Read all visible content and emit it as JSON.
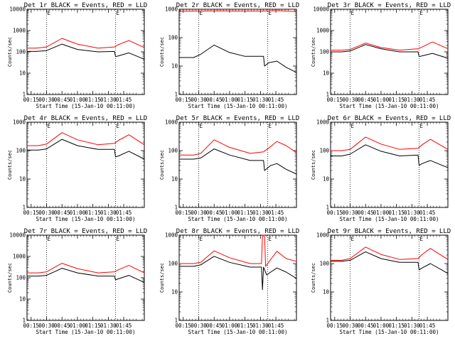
{
  "chart_data": [
    {
      "type": "line",
      "title": "Det 1r BLACK = Events, RED = LLD",
      "xlabel": "Start Time (15-Jan-10 00:11:00)",
      "ylabel": "Counts/sec",
      "y_scale": "log",
      "ylim": [
        1,
        10000
      ],
      "xticks": [
        "00:15",
        "00:30",
        "00:45",
        "01:00",
        "01:15",
        "01:30",
        "01:45"
      ],
      "yticks": [
        "1",
        "10",
        "100",
        "1000",
        "10000"
      ],
      "vlines_min": [
        30,
        97
      ],
      "marker": "E",
      "series": [
        {
          "color": "#000000",
          "values": [
            [
              11,
              105
            ],
            [
              20,
              105
            ],
            [
              30,
              115
            ],
            [
              45,
              230
            ],
            [
              60,
              130
            ],
            [
              80,
              100
            ],
            [
              96,
              105
            ],
            [
              97,
              60
            ],
            [
              100,
              65
            ],
            [
              110,
              90
            ],
            [
              125,
              45
            ]
          ]
        },
        {
          "color": "#ff0000",
          "values": [
            [
              11,
              150
            ],
            [
              20,
              150
            ],
            [
              30,
              170
            ],
            [
              45,
              430
            ],
            [
              60,
              230
            ],
            [
              80,
              150
            ],
            [
              96,
              170
            ],
            [
              100,
              220
            ],
            [
              110,
              340
            ],
            [
              125,
              160
            ]
          ]
        }
      ]
    },
    {
      "type": "line",
      "title": "Det 2r BLACK = Events, RED = LLD",
      "xlabel": "Start Time (15-Jan-10 00:11:00)",
      "ylabel": "Counts/sec",
      "y_scale": "log",
      "ylim": [
        1,
        1000
      ],
      "xticks": [
        "00:15",
        "00:30",
        "00:45",
        "01:00",
        "01:15",
        "01:30",
        "01:45"
      ],
      "yticks": [
        "1",
        "10",
        "100",
        "1000"
      ],
      "vlines_min": [
        30,
        97
      ],
      "marker": "E",
      "series": [
        {
          "color": "#000000",
          "values": [
            [
              11,
              20
            ],
            [
              25,
              20
            ],
            [
              32,
              26
            ],
            [
              45,
              55
            ],
            [
              60,
              30
            ],
            [
              75,
              22
            ],
            [
              93,
              22
            ],
            [
              94,
              10
            ],
            [
              98,
              13
            ],
            [
              106,
              15
            ],
            [
              115,
              9
            ],
            [
              125,
              6
            ]
          ]
        },
        {
          "color": "#ff0000",
          "values": [
            [
              11,
              850
            ],
            [
              30,
              860
            ],
            [
              50,
              880
            ],
            [
              70,
              860
            ],
            [
              90,
              860
            ],
            [
              106,
              890
            ],
            [
              125,
              830
            ]
          ]
        }
      ]
    },
    {
      "type": "line",
      "title": "Det 3r BLACK = Events, RED = LLD",
      "xlabel": "Start Time (15-Jan-10 00:11:00)",
      "ylabel": "Counts/sec",
      "y_scale": "log",
      "ylim": [
        1,
        10000
      ],
      "xticks": [
        "00:15",
        "00:30",
        "00:45",
        "01:00",
        "01:15",
        "01:30",
        "01:45"
      ],
      "yticks": [
        "1",
        "10",
        "100",
        "1000",
        "10000"
      ],
      "vlines_min": [
        30,
        97
      ],
      "marker": "E",
      "series": [
        {
          "color": "#000000",
          "values": [
            [
              11,
              100
            ],
            [
              22,
              100
            ],
            [
              30,
              110
            ],
            [
              45,
              220
            ],
            [
              60,
              140
            ],
            [
              78,
              100
            ],
            [
              96,
              100
            ],
            [
              97,
              60
            ],
            [
              100,
              65
            ],
            [
              110,
              85
            ],
            [
              125,
              50
            ]
          ]
        },
        {
          "color": "#ff0000",
          "values": [
            [
              11,
              120
            ],
            [
              22,
              120
            ],
            [
              30,
              130
            ],
            [
              45,
              260
            ],
            [
              60,
              160
            ],
            [
              78,
              120
            ],
            [
              96,
              140
            ],
            [
              100,
              170
            ],
            [
              110,
              290
            ],
            [
              125,
              140
            ]
          ]
        }
      ]
    },
    {
      "type": "line",
      "title": "Det 4r BLACK = Events, RED = LLD",
      "xlabel": "Start Time (15-Jan-10 00:11:00)",
      "ylabel": "Counts/sec",
      "y_scale": "log",
      "ylim": [
        1,
        1000
      ],
      "xticks": [
        "00:15",
        "00:30",
        "00:45",
        "01:00",
        "01:15",
        "01:30",
        "01:45"
      ],
      "yticks": [
        "1",
        "10",
        "100",
        "1000"
      ],
      "vlines_min": [
        30,
        97
      ],
      "marker": "E",
      "series": [
        {
          "color": "#000000",
          "values": [
            [
              11,
              105
            ],
            [
              22,
              105
            ],
            [
              30,
              115
            ],
            [
              45,
              250
            ],
            [
              60,
              150
            ],
            [
              80,
              110
            ],
            [
              96,
              110
            ],
            [
              97,
              60
            ],
            [
              100,
              65
            ],
            [
              110,
              95
            ],
            [
              125,
              50
            ]
          ]
        },
        {
          "color": "#ff0000",
          "values": [
            [
              11,
              150
            ],
            [
              22,
              150
            ],
            [
              30,
              170
            ],
            [
              45,
              430
            ],
            [
              60,
              240
            ],
            [
              80,
              160
            ],
            [
              96,
              180
            ],
            [
              100,
              230
            ],
            [
              110,
              360
            ],
            [
              125,
              160
            ]
          ]
        }
      ]
    },
    {
      "type": "line",
      "title": "Det 5r BLACK = Events, RED = LLD",
      "xlabel": "Start Time (15-Jan-10 00:11:00)",
      "ylabel": "Counts/sec",
      "y_scale": "log",
      "ylim": [
        1,
        1000
      ],
      "xticks": [
        "00:15",
        "00:30",
        "00:45",
        "01:00",
        "01:15",
        "01:30",
        "01:45"
      ],
      "yticks": [
        "1",
        "10",
        "100",
        "1000"
      ],
      "vlines_min": [
        30,
        97
      ],
      "marker": "E",
      "series": [
        {
          "color": "#000000",
          "values": [
            [
              11,
              50
            ],
            [
              25,
              50
            ],
            [
              32,
              55
            ],
            [
              45,
              115
            ],
            [
              60,
              70
            ],
            [
              80,
              45
            ],
            [
              93,
              45
            ],
            [
              94,
              20
            ],
            [
              100,
              30
            ],
            [
              106,
              35
            ],
            [
              115,
              22
            ],
            [
              125,
              15
            ]
          ]
        },
        {
          "color": "#ff0000",
          "values": [
            [
              11,
              70
            ],
            [
              25,
              70
            ],
            [
              32,
              80
            ],
            [
              45,
              240
            ],
            [
              60,
              130
            ],
            [
              80,
              80
            ],
            [
              93,
              90
            ],
            [
              100,
              140
            ],
            [
              106,
              210
            ],
            [
              115,
              150
            ],
            [
              125,
              85
            ]
          ]
        }
      ]
    },
    {
      "type": "line",
      "title": "Det 6r BLACK = Events, RED = LLD",
      "xlabel": "Start Time (15-Jan-10 00:11:00)",
      "ylabel": "Counts/sec",
      "y_scale": "log",
      "ylim": [
        1,
        1000
      ],
      "xticks": [
        "00:15",
        "00:30",
        "00:45",
        "01:00",
        "01:15",
        "01:30",
        "01:45"
      ],
      "yticks": [
        "1",
        "10",
        "100",
        "1000"
      ],
      "vlines_min": [
        30,
        97
      ],
      "marker": "E",
      "series": [
        {
          "color": "#000000",
          "values": [
            [
              11,
              65
            ],
            [
              22,
              65
            ],
            [
              30,
              75
            ],
            [
              45,
              160
            ],
            [
              60,
              95
            ],
            [
              78,
              65
            ],
            [
              96,
              70
            ],
            [
              97,
              30
            ],
            [
              100,
              35
            ],
            [
              108,
              45
            ],
            [
              125,
              25
            ]
          ]
        },
        {
          "color": "#ff0000",
          "values": [
            [
              11,
              100
            ],
            [
              22,
              100
            ],
            [
              30,
              110
            ],
            [
              45,
              300
            ],
            [
              60,
              170
            ],
            [
              78,
              110
            ],
            [
              96,
              120
            ],
            [
              100,
              160
            ],
            [
              108,
              250
            ],
            [
              125,
              110
            ]
          ]
        }
      ]
    },
    {
      "type": "line",
      "title": "Det 7r BLACK = Events, RED = LLD",
      "xlabel": "Start Time (15-Jan-10 00:11:00)",
      "ylabel": "Counts/sec",
      "y_scale": "log",
      "ylim": [
        1,
        10000
      ],
      "xticks": [
        "00:15",
        "00:30",
        "00:45",
        "01:00",
        "01:15",
        "01:30",
        "01:45"
      ],
      "yticks": [
        "1",
        "10",
        "100",
        "1000",
        "10000"
      ],
      "vlines_min": [
        30,
        97
      ],
      "marker": "E",
      "series": [
        {
          "color": "#000000",
          "values": [
            [
              11,
              120
            ],
            [
              22,
              120
            ],
            [
              30,
              130
            ],
            [
              45,
              280
            ],
            [
              60,
              170
            ],
            [
              80,
              120
            ],
            [
              96,
              120
            ],
            [
              97,
              80
            ],
            [
              100,
              90
            ],
            [
              110,
              130
            ],
            [
              125,
              60
            ]
          ]
        },
        {
          "color": "#ff0000",
          "values": [
            [
              11,
              170
            ],
            [
              22,
              170
            ],
            [
              30,
              190
            ],
            [
              45,
              480
            ],
            [
              60,
              270
            ],
            [
              80,
              170
            ],
            [
              96,
              190
            ],
            [
              100,
              240
            ],
            [
              110,
              380
            ],
            [
              125,
              170
            ]
          ]
        }
      ]
    },
    {
      "type": "line",
      "title": "Det 8r BLACK = Events, RED = LLD",
      "xlabel": "Start Time (15-Jan-10 00:11:00)",
      "ylabel": "Counts/sec",
      "y_scale": "log",
      "ylim": [
        1,
        1000
      ],
      "xticks": [
        "00:15",
        "00:30",
        "00:45",
        "01:00",
        "01:15",
        "01:30",
        "01:45"
      ],
      "yticks": [
        "1",
        "10",
        "100",
        "1000"
      ],
      "vlines_min": [
        30,
        97
      ],
      "marker": "E",
      "series": [
        {
          "color": "#000000",
          "values": [
            [
              11,
              80
            ],
            [
              25,
              80
            ],
            [
              32,
              90
            ],
            [
              45,
              180
            ],
            [
              60,
              110
            ],
            [
              80,
              75
            ],
            [
              91,
              75
            ],
            [
              92,
              12
            ],
            [
              93,
              75
            ],
            [
              96,
              40
            ],
            [
              100,
              50
            ],
            [
              106,
              70
            ],
            [
              115,
              50
            ],
            [
              125,
              30
            ]
          ]
        },
        {
          "color": "#ff0000",
          "values": [
            [
              11,
              100
            ],
            [
              25,
              100
            ],
            [
              32,
              110
            ],
            [
              45,
              280
            ],
            [
              60,
              160
            ],
            [
              80,
              100
            ],
            [
              91,
              100
            ],
            [
              92,
              1000
            ],
            [
              93,
              1000
            ],
            [
              94,
              1000
            ],
            [
              95,
              80
            ],
            [
              100,
              140
            ],
            [
              106,
              270
            ],
            [
              115,
              150
            ],
            [
              125,
              120
            ]
          ]
        }
      ]
    },
    {
      "type": "line",
      "title": "Det 9r BLACK = Events, RED = LLD",
      "xlabel": "Start Time (15-Jan-10 00:11:00)",
      "ylabel": "Counts/sec",
      "y_scale": "log",
      "ylim": [
        1,
        1000
      ],
      "xticks": [
        "00:15",
        "00:30",
        "00:45",
        "01:00",
        "01:15",
        "01:30",
        "01:45"
      ],
      "yticks": [
        "1",
        "10",
        "100",
        "1000"
      ],
      "vlines_min": [
        30,
        97
      ],
      "marker": "E",
      "series": [
        {
          "color": "#000000",
          "values": [
            [
              11,
              120
            ],
            [
              22,
              120
            ],
            [
              30,
              130
            ],
            [
              45,
              260
            ],
            [
              60,
              150
            ],
            [
              78,
              110
            ],
            [
              96,
              110
            ],
            [
              97,
              60
            ],
            [
              100,
              70
            ],
            [
              108,
              100
            ],
            [
              125,
              45
            ]
          ]
        },
        {
          "color": "#ff0000",
          "values": [
            [
              11,
              130
            ],
            [
              22,
              130
            ],
            [
              30,
              150
            ],
            [
              45,
              380
            ],
            [
              60,
              210
            ],
            [
              78,
              140
            ],
            [
              96,
              150
            ],
            [
              100,
              210
            ],
            [
              108,
              340
            ],
            [
              125,
              140
            ]
          ]
        }
      ]
    }
  ]
}
